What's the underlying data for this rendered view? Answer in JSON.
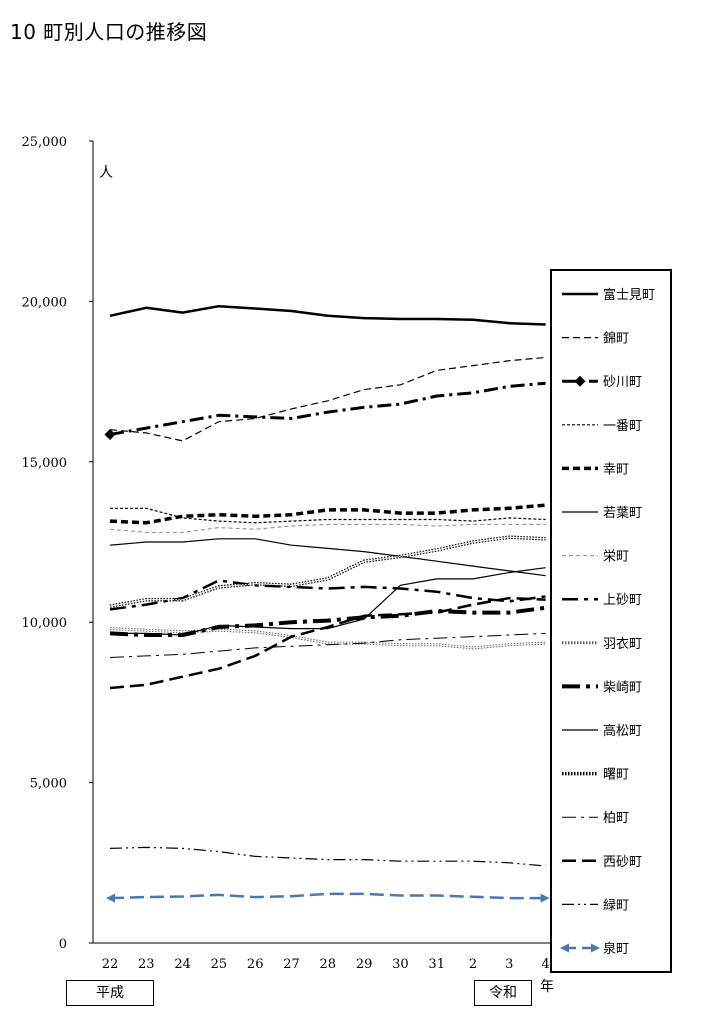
{
  "title": "10 町別人口の推移図",
  "unit_label": "人",
  "era_heisei": "平成",
  "era_reiwa": "令和",
  "year_unit": "年",
  "chart_data": {
    "type": "line",
    "title": "10 町別人口の推移図",
    "xlabel": "年",
    "ylabel": "人",
    "ylim": [
      0,
      25000
    ],
    "y_ticks": [
      "0",
      "5,000",
      "10,000",
      "15,000",
      "20,000",
      "25,000"
    ],
    "x": [
      "22",
      "23",
      "24",
      "25",
      "26",
      "27",
      "28",
      "29",
      "30",
      "31",
      "2",
      "3",
      "4"
    ],
    "grid": false,
    "legend_position": "right",
    "series": [
      {
        "name": "富士見町",
        "style": "solid",
        "width": 2.5,
        "color": "#000000",
        "values": [
          19550,
          19800,
          19650,
          19850,
          19780,
          19700,
          19550,
          19480,
          19450,
          19450,
          19430,
          19320,
          19280
        ]
      },
      {
        "name": "錦町",
        "style": "dash",
        "width": 1.2,
        "color": "#000000",
        "values": [
          16000,
          15900,
          15650,
          16250,
          16350,
          16650,
          16900,
          17250,
          17400,
          17850,
          18000,
          18150,
          18250
        ]
      },
      {
        "name": "砂川町",
        "style": "dashdot",
        "width": 3,
        "color": "#000000",
        "marker": "diamond",
        "values": [
          15850,
          16050,
          16250,
          16450,
          16400,
          16350,
          16550,
          16700,
          16800,
          17050,
          17150,
          17350,
          17450
        ]
      },
      {
        "name": "一番町",
        "style": "fine-dash",
        "width": 1.2,
        "color": "#000000",
        "values": [
          13550,
          13550,
          13250,
          13150,
          13100,
          13150,
          13200,
          13200,
          13200,
          13200,
          13150,
          13250,
          13200
        ]
      },
      {
        "name": "幸町",
        "style": "heavy-dash",
        "width": 3.5,
        "color": "#000000",
        "values": [
          13150,
          13100,
          13300,
          13350,
          13300,
          13350,
          13500,
          13500,
          13400,
          13400,
          13500,
          13550,
          13650
        ]
      },
      {
        "name": "若葉町",
        "style": "solid",
        "width": 1.2,
        "color": "#000000",
        "values": [
          12400,
          12500,
          12500,
          12600,
          12600,
          12400,
          12300,
          12200,
          12050,
          11900,
          11750,
          11600,
          11450
        ]
      },
      {
        "name": "栄町",
        "style": "light-dash",
        "width": 1,
        "color": "#888888",
        "values": [
          12900,
          12800,
          12800,
          12950,
          12900,
          13000,
          13050,
          13050,
          13050,
          13000,
          13050,
          13050,
          13050
        ]
      },
      {
        "name": "上砂町",
        "style": "long-dashdot",
        "width": 2.5,
        "color": "#000000",
        "values": [
          10400,
          10550,
          10750,
          11300,
          11150,
          11100,
          11050,
          11100,
          11050,
          10950,
          10750,
          10650,
          10800
        ]
      },
      {
        "name": "羽衣町",
        "style": "dotted-double",
        "width": 3,
        "color": "#666666",
        "values": [
          9800,
          9750,
          9700,
          9750,
          9700,
          9550,
          9350,
          9350,
          9300,
          9300,
          9200,
          9300,
          9350
        ]
      },
      {
        "name": "柴崎町",
        "style": "heavy-dashdot",
        "width": 4,
        "color": "#000000",
        "values": [
          9650,
          9600,
          9600,
          9850,
          9900,
          10000,
          10050,
          10150,
          10200,
          10350,
          10300,
          10300,
          10450
        ]
      },
      {
        "name": "高松町",
        "style": "solid",
        "width": 1.2,
        "color": "#000000",
        "values": [
          9650,
          9650,
          9600,
          9900,
          9850,
          9800,
          9800,
          10100,
          11150,
          11350,
          11350,
          11550,
          11700
        ]
      },
      {
        "name": "曙町",
        "style": "dotted-double",
        "width": 3.5,
        "color": "#000000",
        "values": [
          10500,
          10700,
          10700,
          11100,
          11200,
          11150,
          11350,
          11900,
          12050,
          12250,
          12500,
          12650,
          12600
        ]
      },
      {
        "name": "柏町",
        "style": "dashdot",
        "width": 1,
        "color": "#000000",
        "values": [
          8900,
          8950,
          9000,
          9100,
          9200,
          9250,
          9300,
          9350,
          9450,
          9500,
          9550,
          9600,
          9650
        ]
      },
      {
        "name": "西砂町",
        "style": "long-dash",
        "width": 2.5,
        "color": "#000000",
        "values": [
          7950,
          8050,
          8300,
          8550,
          8950,
          9550,
          9850,
          10200,
          10250,
          10300,
          10550,
          10750,
          10700
        ]
      },
      {
        "name": "緑町",
        "style": "dashdotdot",
        "width": 1.2,
        "color": "#000000",
        "values": [
          2950,
          2980,
          2950,
          2850,
          2700,
          2650,
          2600,
          2600,
          2550,
          2550,
          2550,
          2500,
          2400
        ]
      },
      {
        "name": "泉町",
        "style": "long-dash",
        "width": 2.5,
        "color": "#4a78b0",
        "marker": "arrow",
        "values": [
          1400,
          1430,
          1450,
          1500,
          1430,
          1460,
          1530,
          1530,
          1480,
          1480,
          1440,
          1400,
          1400
        ]
      }
    ]
  }
}
